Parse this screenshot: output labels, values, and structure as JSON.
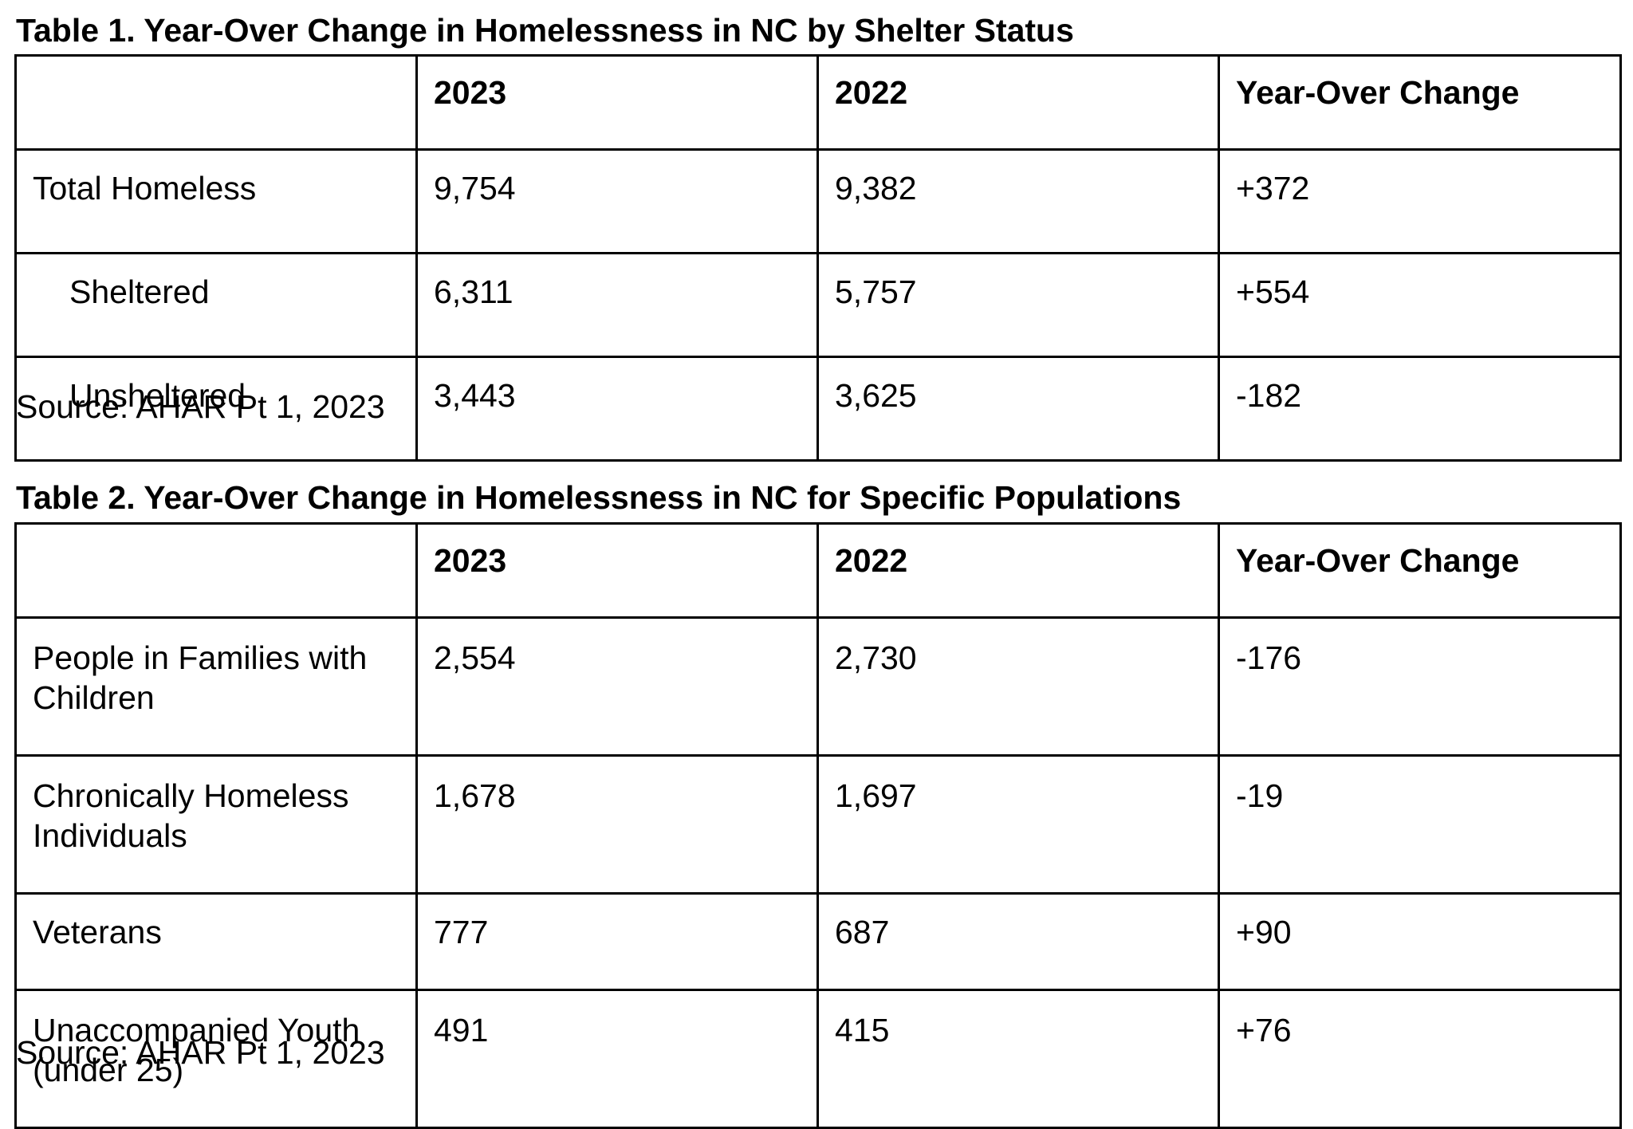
{
  "table1": {
    "title": "Table 1. Year-Over Change in Homelessness in NC by Shelter Status",
    "headers": [
      "",
      "2023",
      "2022",
      "Year-Over Change"
    ],
    "rows": [
      {
        "label": "Total Homeless",
        "y2023": "9,754",
        "y2022": "9,382",
        "change": "+372"
      },
      {
        "label": "Sheltered",
        "y2023": "6,311",
        "y2022": "5,757",
        "change": "+554"
      },
      {
        "label": "Unsheltered",
        "y2023": "3,443",
        "y2022": "3,625",
        "change": "-182"
      }
    ],
    "source": "Source: AHAR Pt 1, 2023"
  },
  "table2": {
    "title": "Table 2. Year-Over Change in Homelessness in NC for Specific Populations",
    "headers": [
      "",
      "2023",
      "2022",
      "Year-Over Change"
    ],
    "rows": [
      {
        "label": "People in Families with Children",
        "y2023": "2,554",
        "y2022": "2,730",
        "change": "-176"
      },
      {
        "label": "Chronically Homeless Individuals",
        "y2023": "1,678",
        "y2022": "1,697",
        "change": "-19"
      },
      {
        "label": "Veterans",
        "y2023": "777",
        "y2022": "687",
        "change": "+90"
      },
      {
        "label": "Unaccompanied Youth (under 25)",
        "y2023": "491",
        "y2022": "415",
        "change": "+76"
      }
    ],
    "source": "Source: AHAR Pt 1, 2023"
  }
}
